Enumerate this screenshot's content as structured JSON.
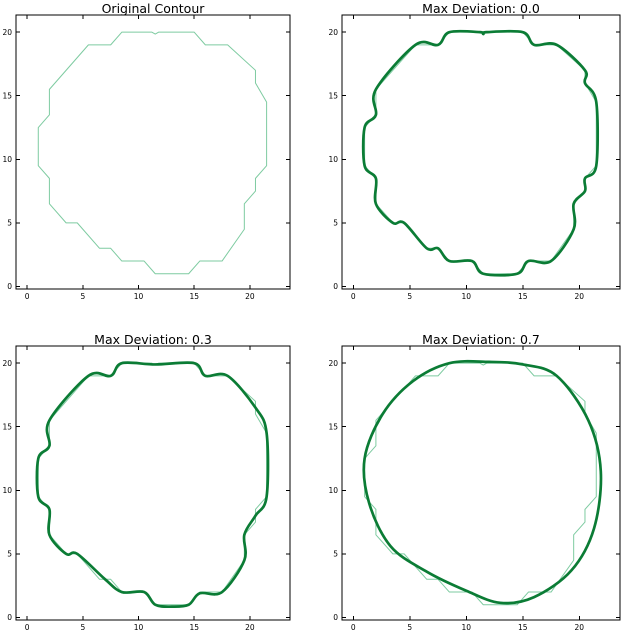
{
  "figure": {
    "background": "#ffffff",
    "title_color": "#000000",
    "axis_color": "#000000"
  },
  "colors": {
    "original_contour": "#7ecba1",
    "smoothed_contour": "#0b7c35"
  },
  "chart_data": [
    {
      "type": "line",
      "title": "Original Contour",
      "xlabel": "",
      "ylabel": "",
      "xlim": [
        -1.0,
        23.6
      ],
      "ylim": [
        -0.2,
        21.35
      ],
      "xticks": [
        0,
        5,
        10,
        15,
        20
      ],
      "yticks": [
        0,
        5,
        10,
        15,
        20
      ],
      "grid": false,
      "legend": "none",
      "series": [
        {
          "name": "original contour",
          "role": "original",
          "color": "#7ecba1",
          "line_width": 1,
          "closed": true,
          "smooth": false,
          "points": [
            [
              8.5,
              20
            ],
            [
              11.2,
              20
            ],
            [
              11.5,
              19.85
            ],
            [
              11.8,
              20
            ],
            [
              15,
              20
            ],
            [
              16,
              19
            ],
            [
              18,
              19
            ],
            [
              20.5,
              17
            ],
            [
              20.5,
              16
            ],
            [
              21.5,
              14.5
            ],
            [
              21.5,
              9.5
            ],
            [
              20.5,
              8.5
            ],
            [
              20.5,
              7.5
            ],
            [
              19.5,
              6.5
            ],
            [
              19.5,
              4.5
            ],
            [
              17.5,
              2
            ],
            [
              15.5,
              2
            ],
            [
              14.5,
              1
            ],
            [
              11.5,
              1
            ],
            [
              10.5,
              2
            ],
            [
              8.5,
              2
            ],
            [
              7.5,
              3
            ],
            [
              6.5,
              3
            ],
            [
              4.5,
              5
            ],
            [
              3.5,
              5
            ],
            [
              2,
              6.5
            ],
            [
              2,
              8.5
            ],
            [
              1,
              9.5
            ],
            [
              1,
              12.5
            ],
            [
              2,
              13.5
            ],
            [
              2,
              15.5
            ],
            [
              5.5,
              19
            ],
            [
              7.5,
              19
            ]
          ]
        }
      ]
    },
    {
      "type": "line",
      "title": "Max Deviation: 0.0",
      "xlabel": "",
      "ylabel": "",
      "xlim": [
        -1.0,
        23.6
      ],
      "ylim": [
        -0.2,
        21.35
      ],
      "xticks": [
        0,
        5,
        10,
        15,
        20
      ],
      "yticks": [
        0,
        5,
        10,
        15,
        20
      ],
      "grid": false,
      "legend": "none",
      "series": [
        {
          "name": "original contour",
          "role": "original",
          "color": "#7ecba1",
          "line_width": 1,
          "closed": true,
          "smooth": false,
          "points": [
            [
              8.5,
              20
            ],
            [
              11.2,
              20
            ],
            [
              11.5,
              19.85
            ],
            [
              11.8,
              20
            ],
            [
              15,
              20
            ],
            [
              16,
              19
            ],
            [
              18,
              19
            ],
            [
              20.5,
              17
            ],
            [
              20.5,
              16
            ],
            [
              21.5,
              14.5
            ],
            [
              21.5,
              9.5
            ],
            [
              20.5,
              8.5
            ],
            [
              20.5,
              7.5
            ],
            [
              19.5,
              6.5
            ],
            [
              19.5,
              4.5
            ],
            [
              17.5,
              2
            ],
            [
              15.5,
              2
            ],
            [
              14.5,
              1
            ],
            [
              11.5,
              1
            ],
            [
              10.5,
              2
            ],
            [
              8.5,
              2
            ],
            [
              7.5,
              3
            ],
            [
              6.5,
              3
            ],
            [
              4.5,
              5
            ],
            [
              3.5,
              5
            ],
            [
              2,
              6.5
            ],
            [
              2,
              8.5
            ],
            [
              1,
              9.5
            ],
            [
              1,
              12.5
            ],
            [
              2,
              13.5
            ],
            [
              2,
              15.5
            ],
            [
              5.5,
              19
            ],
            [
              7.5,
              19
            ]
          ]
        },
        {
          "name": "approximated spline",
          "role": "smoothed",
          "max_deviation": 0.0,
          "color": "#0b7c35",
          "line_width": 2.7,
          "closed": true,
          "smooth": true,
          "points": [
            [
              8.5,
              20
            ],
            [
              11.2,
              20
            ],
            [
              11.5,
              19.85
            ],
            [
              11.8,
              20
            ],
            [
              15,
              20
            ],
            [
              16,
              19
            ],
            [
              18,
              19
            ],
            [
              20.5,
              17
            ],
            [
              20.5,
              16
            ],
            [
              21.5,
              14.5
            ],
            [
              21.5,
              9.5
            ],
            [
              20.5,
              8.5
            ],
            [
              20.5,
              7.5
            ],
            [
              19.5,
              6.5
            ],
            [
              19.5,
              4.5
            ],
            [
              17.5,
              2
            ],
            [
              15.5,
              2
            ],
            [
              14.5,
              1
            ],
            [
              11.5,
              1
            ],
            [
              10.5,
              2
            ],
            [
              8.5,
              2
            ],
            [
              7.5,
              3
            ],
            [
              6.5,
              3
            ],
            [
              4.5,
              5
            ],
            [
              3.5,
              5
            ],
            [
              2,
              6.5
            ],
            [
              2,
              8.5
            ],
            [
              1,
              9.5
            ],
            [
              1,
              12.5
            ],
            [
              2,
              13.5
            ],
            [
              2,
              15.5
            ],
            [
              5.5,
              19
            ],
            [
              7.5,
              19
            ]
          ]
        }
      ]
    },
    {
      "type": "line",
      "title": "Max Deviation: 0.3",
      "xlabel": "",
      "ylabel": "",
      "xlim": [
        -1.0,
        23.6
      ],
      "ylim": [
        -0.2,
        21.35
      ],
      "xticks": [
        0,
        5,
        10,
        15,
        20
      ],
      "yticks": [
        0,
        5,
        10,
        15,
        20
      ],
      "grid": false,
      "legend": "none",
      "series": [
        {
          "name": "original contour",
          "role": "original",
          "color": "#7ecba1",
          "line_width": 1,
          "closed": true,
          "smooth": false,
          "points": [
            [
              8.5,
              20
            ],
            [
              11.2,
              20
            ],
            [
              11.5,
              19.85
            ],
            [
              11.8,
              20
            ],
            [
              15,
              20
            ],
            [
              16,
              19
            ],
            [
              18,
              19
            ],
            [
              20.5,
              17
            ],
            [
              20.5,
              16
            ],
            [
              21.5,
              14.5
            ],
            [
              21.5,
              9.5
            ],
            [
              20.5,
              8.5
            ],
            [
              20.5,
              7.5
            ],
            [
              19.5,
              6.5
            ],
            [
              19.5,
              4.5
            ],
            [
              17.5,
              2
            ],
            [
              15.5,
              2
            ],
            [
              14.5,
              1
            ],
            [
              11.5,
              1
            ],
            [
              10.5,
              2
            ],
            [
              8.5,
              2
            ],
            [
              7.5,
              3
            ],
            [
              6.5,
              3
            ],
            [
              4.5,
              5
            ],
            [
              3.5,
              5
            ],
            [
              2,
              6.5
            ],
            [
              2,
              8.5
            ],
            [
              1,
              9.5
            ],
            [
              1,
              12.5
            ],
            [
              2,
              13.5
            ],
            [
              2,
              15.5
            ],
            [
              5.5,
              19
            ],
            [
              7.5,
              19
            ]
          ]
        },
        {
          "name": "approximated spline",
          "role": "smoothed",
          "max_deviation": 0.3,
          "color": "#0b7c35",
          "line_width": 2.7,
          "closed": true,
          "smooth": true,
          "points": [
            [
              8.5,
              20
            ],
            [
              11.5,
              19.9
            ],
            [
              15,
              20
            ],
            [
              16,
              19
            ],
            [
              18,
              19
            ],
            [
              20.5,
              16.5
            ],
            [
              21.5,
              14.5
            ],
            [
              21.5,
              9.5
            ],
            [
              20.5,
              8
            ],
            [
              19.5,
              6.5
            ],
            [
              19.5,
              4.5
            ],
            [
              17.5,
              2
            ],
            [
              15.5,
              1.9
            ],
            [
              14.5,
              1
            ],
            [
              13,
              0.85
            ],
            [
              11.5,
              1
            ],
            [
              10.5,
              2
            ],
            [
              8.5,
              2
            ],
            [
              7,
              3
            ],
            [
              4.5,
              5
            ],
            [
              3.5,
              5
            ],
            [
              2,
              6.5
            ],
            [
              2,
              8.5
            ],
            [
              1,
              9.5
            ],
            [
              1,
              12.5
            ],
            [
              2,
              13.5
            ],
            [
              2,
              15.5
            ],
            [
              5.5,
              19
            ],
            [
              7.5,
              19
            ]
          ]
        }
      ]
    },
    {
      "type": "line",
      "title": "Max Deviation: 0.7",
      "xlabel": "",
      "ylabel": "",
      "xlim": [
        -1.0,
        23.6
      ],
      "ylim": [
        -0.2,
        21.35
      ],
      "xticks": [
        0,
        5,
        10,
        15,
        20
      ],
      "yticks": [
        0,
        5,
        10,
        15,
        20
      ],
      "grid": false,
      "legend": "none",
      "series": [
        {
          "name": "original contour",
          "role": "original",
          "color": "#7ecba1",
          "line_width": 1,
          "closed": true,
          "smooth": false,
          "points": [
            [
              8.5,
              20
            ],
            [
              11.2,
              20
            ],
            [
              11.5,
              19.85
            ],
            [
              11.8,
              20
            ],
            [
              15,
              20
            ],
            [
              16,
              19
            ],
            [
              18,
              19
            ],
            [
              20.5,
              17
            ],
            [
              20.5,
              16
            ],
            [
              21.5,
              14.5
            ],
            [
              21.5,
              9.5
            ],
            [
              20.5,
              8.5
            ],
            [
              20.5,
              7.5
            ],
            [
              19.5,
              6.5
            ],
            [
              19.5,
              4.5
            ],
            [
              17.5,
              2
            ],
            [
              15.5,
              2
            ],
            [
              14.5,
              1
            ],
            [
              11.5,
              1
            ],
            [
              10.5,
              2
            ],
            [
              8.5,
              2
            ],
            [
              7.5,
              3
            ],
            [
              6.5,
              3
            ],
            [
              4.5,
              5
            ],
            [
              3.5,
              5
            ],
            [
              2,
              6.5
            ],
            [
              2,
              8.5
            ],
            [
              1,
              9.5
            ],
            [
              1,
              12.5
            ],
            [
              2,
              13.5
            ],
            [
              2,
              15.5
            ],
            [
              5.5,
              19
            ],
            [
              7.5,
              19
            ]
          ]
        },
        {
          "name": "approximated spline",
          "role": "smoothed",
          "max_deviation": 0.7,
          "color": "#0b7c35",
          "line_width": 2.7,
          "closed": true,
          "smooth": true,
          "points": [
            [
              8.5,
              20
            ],
            [
              12,
              20.1
            ],
            [
              15,
              19.9
            ],
            [
              18,
              19
            ],
            [
              20.8,
              15.5
            ],
            [
              21.9,
              11.5
            ],
            [
              21.3,
              7
            ],
            [
              19.3,
              3.7
            ],
            [
              16,
              1.6
            ],
            [
              13,
              1.15
            ],
            [
              10,
              2.1
            ],
            [
              6.5,
              3.6
            ],
            [
              3.3,
              5.6
            ],
            [
              1.4,
              9
            ],
            [
              1,
              12.5
            ],
            [
              2.6,
              16
            ],
            [
              5.3,
              18.6
            ]
          ]
        }
      ]
    }
  ]
}
